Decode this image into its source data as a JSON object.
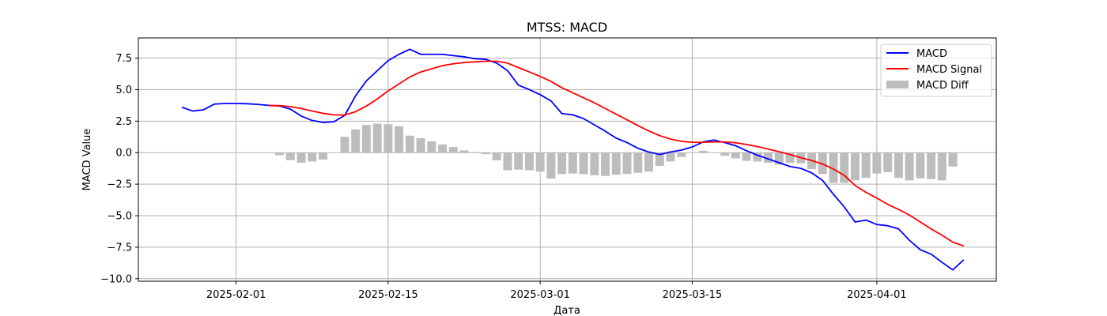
{
  "chart_data": {
    "type": "line",
    "title": "MTSS: MACD",
    "xlabel": "Дата",
    "ylabel": "MACD Value",
    "x_type": "date",
    "x_ticks": [
      "2025-02-01",
      "2025-02-15",
      "2025-03-01",
      "2025-03-15",
      "2025-04-01"
    ],
    "y_ticks": [
      -10.0,
      -7.5,
      -5.0,
      -2.5,
      0.0,
      2.5,
      5.0,
      7.5
    ],
    "y_tick_labels": [
      "−10.0",
      "−7.5",
      "−5.0",
      "−2.5",
      "0.0",
      "2.5",
      "5.0",
      "7.5"
    ],
    "xlim": [
      "2025-01-23",
      "2025-04-12"
    ],
    "ylim": [
      -10.2,
      9.1
    ],
    "grid": true,
    "legend_position": "top-right",
    "dates": [
      "2025-01-27",
      "2025-01-28",
      "2025-01-29",
      "2025-01-30",
      "2025-01-31",
      "2025-02-01",
      "2025-02-02",
      "2025-02-03",
      "2025-02-04",
      "2025-02-05",
      "2025-02-06",
      "2025-02-07",
      "2025-02-08",
      "2025-02-09",
      "2025-02-10",
      "2025-02-11",
      "2025-02-12",
      "2025-02-13",
      "2025-02-14",
      "2025-02-15",
      "2025-02-16",
      "2025-02-17",
      "2025-02-18",
      "2025-02-19",
      "2025-02-20",
      "2025-02-21",
      "2025-02-22",
      "2025-02-23",
      "2025-02-24",
      "2025-02-25",
      "2025-02-26",
      "2025-02-27",
      "2025-02-28",
      "2025-03-01",
      "2025-03-02",
      "2025-03-03",
      "2025-03-04",
      "2025-03-05",
      "2025-03-06",
      "2025-03-07",
      "2025-03-08",
      "2025-03-09",
      "2025-03-10",
      "2025-03-11",
      "2025-03-12",
      "2025-03-13",
      "2025-03-14",
      "2025-03-15",
      "2025-03-16",
      "2025-03-17",
      "2025-03-18",
      "2025-03-19",
      "2025-03-20",
      "2025-03-21",
      "2025-03-22",
      "2025-03-23",
      "2025-03-24",
      "2025-03-25",
      "2025-03-26",
      "2025-03-27",
      "2025-03-28",
      "2025-03-29",
      "2025-03-30",
      "2025-03-31",
      "2025-04-01",
      "2025-04-02",
      "2025-04-03",
      "2025-04-04",
      "2025-04-05",
      "2025-04-06",
      "2025-04-07",
      "2025-04-08",
      "2025-04-09"
    ],
    "series": [
      {
        "name": "MACD",
        "color": "#0000ff",
        "kind": "line",
        "values": [
          3.6,
          3.3,
          3.4,
          3.85,
          3.9,
          3.9,
          3.88,
          3.83,
          3.75,
          3.7,
          3.45,
          2.9,
          2.55,
          2.4,
          2.45,
          2.95,
          4.5,
          5.7,
          6.5,
          7.3,
          7.8,
          8.2,
          7.8,
          7.8,
          7.8,
          7.7,
          7.6,
          7.45,
          7.4,
          7.1,
          6.5,
          5.35,
          5.0,
          4.6,
          4.1,
          3.1,
          3.0,
          2.7,
          2.2,
          1.7,
          1.15,
          0.8,
          0.35,
          0.05,
          -0.15,
          0.05,
          0.2,
          0.45,
          0.85,
          1.0,
          0.8,
          0.55,
          0.15,
          -0.2,
          -0.5,
          -0.8,
          -1.1,
          -1.25,
          -1.6,
          -2.2,
          -3.3,
          -4.3,
          -5.5,
          -5.35,
          -5.7,
          -5.8,
          -6.05,
          -6.95,
          -7.7,
          -8.05,
          -8.7,
          -9.3,
          -8.5
        ]
      },
      {
        "name": "MACD Signal",
        "color": "#ff0000",
        "kind": "line",
        "values": [
          null,
          null,
          null,
          null,
          null,
          null,
          null,
          null,
          3.73,
          3.73,
          3.65,
          3.5,
          3.3,
          3.12,
          3.0,
          2.98,
          3.25,
          3.7,
          4.25,
          4.9,
          5.45,
          6.0,
          6.4,
          6.65,
          6.9,
          7.05,
          7.15,
          7.2,
          7.25,
          7.25,
          7.1,
          6.75,
          6.4,
          6.05,
          5.65,
          5.15,
          4.75,
          4.35,
          3.95,
          3.5,
          3.05,
          2.6,
          2.15,
          1.72,
          1.35,
          1.08,
          0.9,
          0.82,
          0.82,
          0.85,
          0.85,
          0.78,
          0.65,
          0.48,
          0.28,
          0.08,
          -0.15,
          -0.4,
          -0.62,
          -0.9,
          -1.3,
          -1.8,
          -2.6,
          -3.15,
          -3.6,
          -4.1,
          -4.5,
          -4.95,
          -5.5,
          -6.05,
          -6.55,
          -7.1,
          -7.4
        ]
      },
      {
        "name": "MACD Diff",
        "color": "#bdbdbd",
        "kind": "bar",
        "values": [
          null,
          null,
          null,
          null,
          null,
          null,
          null,
          null,
          null,
          -0.2,
          -0.6,
          -0.8,
          -0.7,
          -0.55,
          null,
          1.25,
          1.85,
          2.2,
          2.3,
          2.25,
          2.1,
          1.35,
          1.15,
          0.9,
          0.65,
          0.45,
          0.18,
          0.05,
          -0.12,
          -0.6,
          -1.4,
          -1.35,
          -1.4,
          -1.5,
          -2.05,
          -1.7,
          -1.65,
          -1.7,
          -1.8,
          -1.85,
          -1.75,
          -1.7,
          -1.6,
          -1.5,
          -1.05,
          -0.7,
          -0.35,
          null,
          0.15,
          null,
          -0.25,
          -0.45,
          -0.65,
          -0.7,
          -0.8,
          -0.95,
          -0.8,
          -0.85,
          -1.3,
          -1.7,
          -2.4,
          -2.4,
          -2.2,
          -2.0,
          -1.65,
          -1.55,
          -2.0,
          -2.2,
          -2.05,
          -2.1,
          -2.2,
          -1.1,
          null
        ]
      }
    ]
  }
}
